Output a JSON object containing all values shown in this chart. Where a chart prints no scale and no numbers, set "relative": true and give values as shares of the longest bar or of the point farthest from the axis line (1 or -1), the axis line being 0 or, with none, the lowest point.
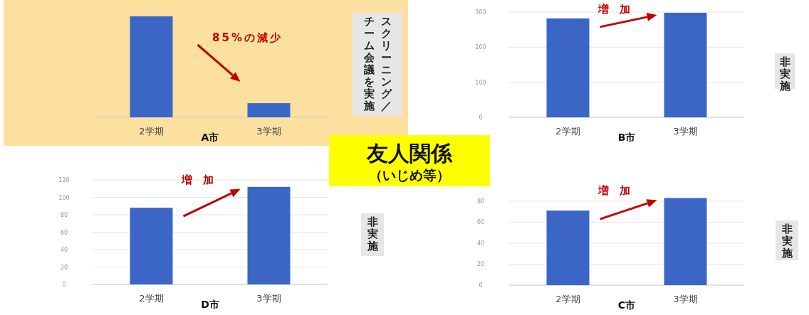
{
  "chart_data": [
    {
      "type": "bar",
      "categories": [
        "2学期",
        "3学期"
      ],
      "values": [
        1,
        0.14
      ],
      "relative": true,
      "color": "#3b66c6",
      "xlabel": "A市",
      "annotations": [
        "85%の減少",
        "スクリーニング／",
        "チーム会議を実施"
      ]
    },
    {
      "type": "bar",
      "categories": [
        "2学期",
        "3学期"
      ],
      "values": [
        282,
        298
      ],
      "color": "#3b66c6",
      "ylim": [
        0,
        300
      ],
      "yticks": [
        0,
        100,
        200,
        300
      ],
      "grid": "y",
      "xlabel": "B市",
      "annotations": [
        "増　加",
        "非実施"
      ]
    },
    {
      "type": "other",
      "title": "友人関係",
      "subtitle": "（いじめ等）"
    },
    {
      "type": "bar",
      "categories": [
        "2学期",
        "3学期"
      ],
      "values": [
        88,
        112
      ],
      "color": "#3b66c6",
      "ylim": [
        0,
        120
      ],
      "yticks": [
        0,
        20,
        40,
        60,
        80,
        100,
        120
      ],
      "grid": "y",
      "xlabel": "D市",
      "annotations": [
        "増　加",
        "非実施"
      ]
    },
    {
      "type": "bar",
      "categories": [
        "2学期",
        "3学期"
      ],
      "values": [
        71,
        83
      ],
      "color": "#3b66c6",
      "ylim": [
        0,
        84
      ],
      "yticks": [
        0,
        20,
        40,
        60,
        80
      ],
      "grid": "y",
      "xlabel": "C市",
      "annotations": [
        "増　加",
        "非実施"
      ]
    }
  ]
}
